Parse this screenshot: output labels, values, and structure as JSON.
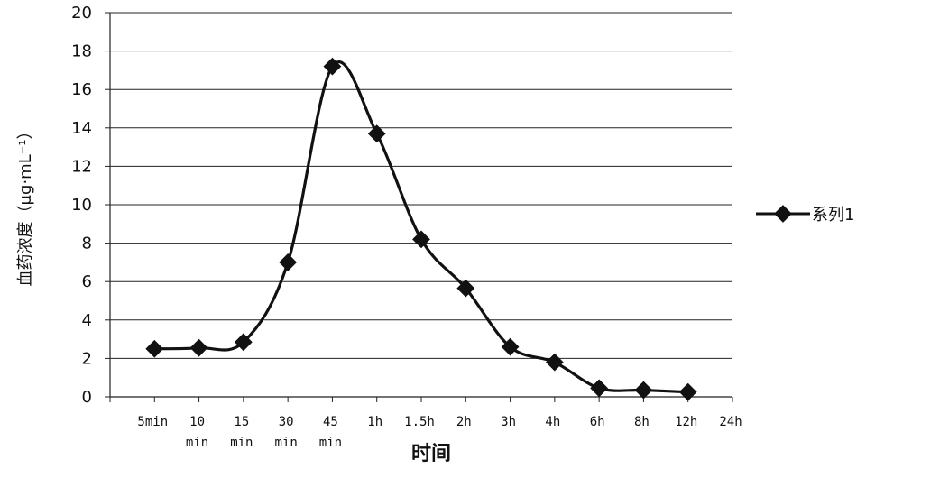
{
  "chart_data": {
    "type": "line",
    "xlabel": "时间",
    "ylabel": "血药浓度（μg·mL⁻¹）",
    "ylim": [
      0,
      20
    ],
    "yticks": [
      "0",
      "2",
      "4",
      "6",
      "8",
      "10",
      "12",
      "14",
      "16",
      "18",
      "20"
    ],
    "grid": true,
    "legend_position": "right",
    "categories": [
      [
        "5min"
      ],
      [
        "10",
        "min"
      ],
      [
        "15",
        "min"
      ],
      [
        "30",
        "min"
      ],
      [
        "45",
        "min"
      ],
      [
        "1h"
      ],
      [
        "1.5h"
      ],
      [
        "2h"
      ],
      [
        "3h"
      ],
      [
        "4h"
      ],
      [
        "6h"
      ],
      [
        "8h"
      ],
      [
        "12h"
      ],
      [
        "24h"
      ]
    ],
    "series": [
      {
        "name": "系列1",
        "color": "#111111",
        "marker": "diamond",
        "values": [
          2.5,
          2.55,
          2.85,
          7.0,
          17.2,
          13.7,
          8.2,
          5.65,
          2.6,
          1.8,
          0.45,
          0.35,
          0.25,
          null
        ]
      }
    ]
  }
}
